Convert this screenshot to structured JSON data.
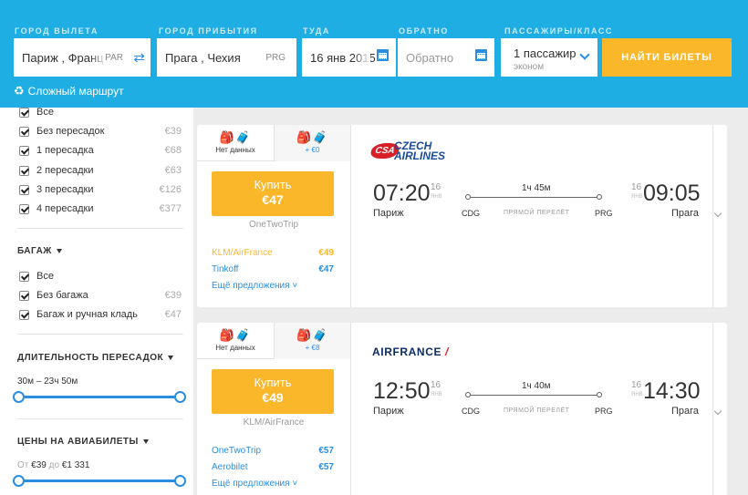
{
  "search": {
    "from_label": "ГОРОД ВЫЛЕТА",
    "from_value": "Париж , Франция",
    "from_code": "PAR",
    "to_label": "ГОРОД ПРИБЫТИЯ",
    "to_value": "Прага , Чехия",
    "to_code": "PRG",
    "depart_label": "ТУДА",
    "depart_value": "16 янв 2015",
    "return_label": "ОБРАТНО",
    "return_placeholder": "Обратно",
    "pax_label": "ПАССАЖИРЫ/КЛАСС",
    "pax_value": "1 пассажир",
    "pax_class": "эконом",
    "search_button": "НАЙТИ БИЛЕТЫ",
    "complex_route": "Сложный маршрут"
  },
  "filters": {
    "stops": [
      {
        "label": "Все",
        "price": ""
      },
      {
        "label": "Без пересадок",
        "price": "€39"
      },
      {
        "label": "1 пересадка",
        "price": "€68"
      },
      {
        "label": "2 пересадки",
        "price": "€63"
      },
      {
        "label": "3 пересадки",
        "price": "€126"
      },
      {
        "label": "4 пересадки",
        "price": "€377"
      }
    ],
    "baggage_title": "БАГАЖ",
    "baggage": [
      {
        "label": "Все",
        "price": ""
      },
      {
        "label": "Без багажа",
        "price": "€39"
      },
      {
        "label": "Багаж и ручная кладь",
        "price": "€47"
      }
    ],
    "layover_title": "ДЛИТЕЛЬНОСТЬ ПЕРЕСАДОК",
    "layover_range": "30м – 23ч 50м",
    "layover_fill": [
      0,
      1
    ],
    "price_title": "ЦЕНЫ НА АВИАБИЛЕТЫ",
    "price_from_word": "От",
    "price_from": "€39",
    "price_to_word": "до",
    "price_to": "€1 331",
    "price_fill": [
      0,
      1
    ]
  },
  "results": [
    {
      "bag_tab1": "Нет данных",
      "bag_tab2": "+ €0",
      "buy_label": "Купить",
      "buy_price": "€47",
      "agent": "OneTwoTrip",
      "offers": [
        {
          "name": "KLM/AirFrance",
          "price": "€49"
        },
        {
          "name": "Tinkoff",
          "price": "€47"
        }
      ],
      "more": "Ещё предложения",
      "airline": "CSA CZECH AIRLINES",
      "airline_badge": "CSA",
      "airline_word1": "CZECH",
      "airline_word2": "AIRLINES",
      "dep_time": "07:20",
      "dep_day": "16",
      "dep_mon": "ЯНВ",
      "arr_time": "09:05",
      "arr_day": "16",
      "arr_mon": "ЯНВ",
      "duration": "1ч 45м",
      "direct": "ПРЯМОЙ ПЕРЕЛЁТ",
      "from_city": "Париж",
      "from_iata": "CDG",
      "to_city": "Прага",
      "to_iata": "PRG"
    },
    {
      "bag_tab1": "Нет данных",
      "bag_tab2": "+ €8",
      "buy_label": "Купить",
      "buy_price": "€49",
      "agent": "KLM/AirFrance",
      "offers": [
        {
          "name": "OneTwoTrip",
          "price": "€57"
        },
        {
          "name": "Aerobilet",
          "price": "€57"
        }
      ],
      "more": "Ещё предложения",
      "airline": "AIRFRANCE",
      "dep_time": "12:50",
      "dep_day": "16",
      "dep_mon": "ЯНВ",
      "arr_time": "14:30",
      "arr_day": "16",
      "arr_mon": "ЯНВ",
      "duration": "1ч 40м",
      "direct": "ПРЯМОЙ ПЕРЕЛЁТ",
      "from_city": "Париж",
      "from_iata": "CDG",
      "to_city": "Прага",
      "to_iata": "PRG"
    }
  ],
  "colors": {
    "header": "#1eaee4",
    "accent": "#fbb72a",
    "link": "#2a8ee0"
  }
}
